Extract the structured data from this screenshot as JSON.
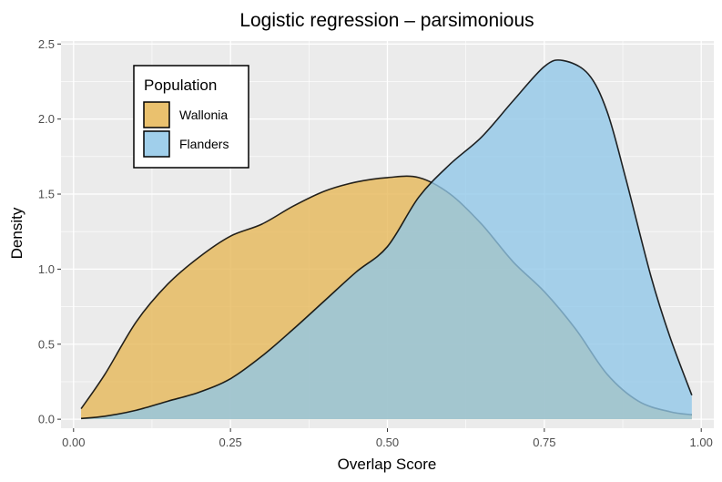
{
  "chart_data": {
    "type": "area",
    "title": "Logistic regression – parsimonious",
    "xlabel": "Overlap Score",
    "ylabel": "Density",
    "xlim": [
      -0.02,
      1.02
    ],
    "ylim": [
      -0.06,
      2.52
    ],
    "x_ticks": [
      0.0,
      0.25,
      0.5,
      0.75,
      1.0
    ],
    "x_tick_labels": [
      "0.00",
      "0.25",
      "0.50",
      "0.75",
      "1.00"
    ],
    "y_ticks": [
      0.0,
      0.5,
      1.0,
      1.5,
      2.0,
      2.5
    ],
    "y_tick_labels": [
      "0.0",
      "0.5",
      "1.0",
      "1.5",
      "2.0",
      "2.5"
    ],
    "grid": true,
    "legend": {
      "title": "Population",
      "placement": "top-left",
      "entries": [
        "Wallonia",
        "Flanders"
      ]
    },
    "series": [
      {
        "name": "Wallonia",
        "color": "#E6B655",
        "x": [
          0.012,
          0.05,
          0.1,
          0.15,
          0.2,
          0.25,
          0.3,
          0.35,
          0.4,
          0.45,
          0.5,
          0.55,
          0.6,
          0.65,
          0.7,
          0.75,
          0.8,
          0.85,
          0.9,
          0.95,
          0.985
        ],
        "y": [
          0.07,
          0.3,
          0.65,
          0.9,
          1.08,
          1.22,
          1.3,
          1.42,
          1.52,
          1.58,
          1.61,
          1.61,
          1.5,
          1.3,
          1.05,
          0.85,
          0.6,
          0.3,
          0.12,
          0.05,
          0.03
        ]
      },
      {
        "name": "Flanders",
        "color": "#8FC7E8",
        "x": [
          0.012,
          0.05,
          0.1,
          0.15,
          0.2,
          0.25,
          0.3,
          0.35,
          0.4,
          0.45,
          0.5,
          0.55,
          0.6,
          0.65,
          0.7,
          0.75,
          0.78,
          0.82,
          0.85,
          0.88,
          0.92,
          0.95,
          0.985
        ],
        "y": [
          0.005,
          0.02,
          0.06,
          0.12,
          0.18,
          0.27,
          0.42,
          0.6,
          0.79,
          0.98,
          1.15,
          1.48,
          1.7,
          1.88,
          2.12,
          2.35,
          2.39,
          2.3,
          2.05,
          1.6,
          0.95,
          0.55,
          0.16
        ]
      }
    ]
  }
}
